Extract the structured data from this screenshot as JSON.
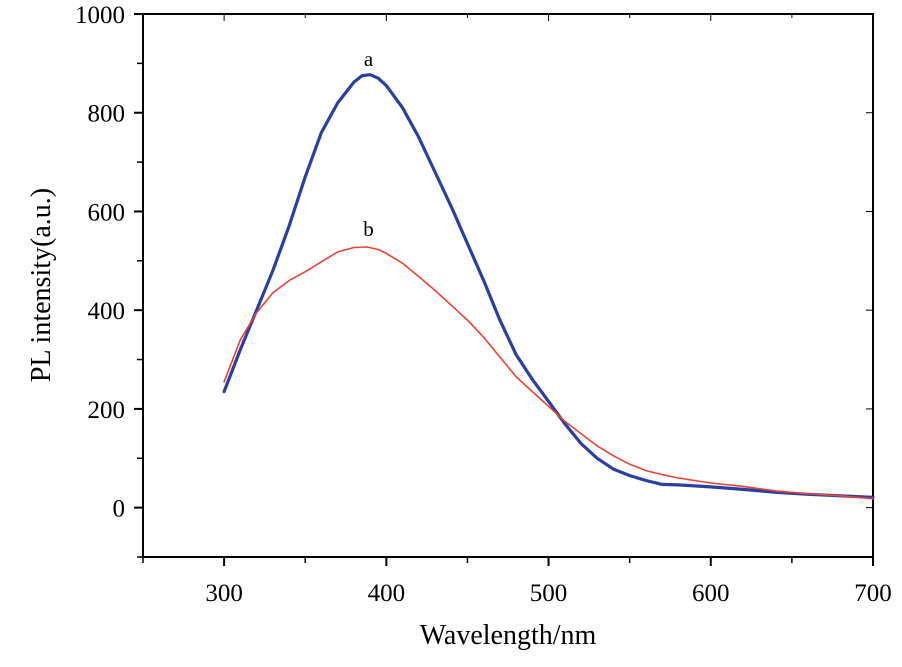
{
  "chart_data": {
    "type": "line",
    "title": "",
    "xlabel": "Wavelength/nm",
    "ylabel": "PL intensity(a.u.)",
    "xlim": [
      250,
      700
    ],
    "ylim": [
      -100,
      1000
    ],
    "x_ticks": [
      300,
      400,
      500,
      600,
      700
    ],
    "y_ticks": [
      0,
      200,
      400,
      600,
      800,
      1000
    ],
    "grid": false,
    "legend": "none",
    "series": [
      {
        "color": "#2a3f9f",
        "x": [
          300,
          310,
          320,
          330,
          340,
          350,
          360,
          370,
          380,
          385,
          390,
          395,
          400,
          410,
          420,
          430,
          440,
          450,
          460,
          470,
          480,
          490,
          500,
          510,
          520,
          530,
          540,
          550,
          560,
          570,
          580,
          600,
          620,
          640,
          660,
          680,
          700
        ],
        "y": [
          235,
          320,
          400,
          480,
          570,
          670,
          760,
          820,
          862,
          875,
          877,
          870,
          855,
          810,
          750,
          680,
          610,
          535,
          460,
          380,
          310,
          260,
          215,
          170,
          130,
          100,
          78,
          65,
          55,
          47,
          46,
          42,
          37,
          31,
          27,
          24,
          21
        ]
      },
      {
        "color": "#e8433a",
        "x": [
          300,
          310,
          320,
          330,
          340,
          350,
          360,
          370,
          380,
          388,
          395,
          400,
          410,
          420,
          430,
          440,
          450,
          460,
          470,
          480,
          490,
          500,
          510,
          520,
          530,
          540,
          550,
          560,
          570,
          580,
          600,
          620,
          640,
          660,
          680,
          700
        ],
        "y": [
          255,
          340,
          395,
          435,
          460,
          478,
          498,
          518,
          527,
          528,
          523,
          515,
          495,
          468,
          440,
          410,
          380,
          345,
          305,
          265,
          235,
          205,
          175,
          150,
          125,
          105,
          88,
          75,
          67,
          60,
          50,
          43,
          34,
          28,
          24,
          18
        ]
      }
    ],
    "annotations": [
      {
        "text": "a",
        "x": 389,
        "y": 895
      },
      {
        "text": "b",
        "x": 389,
        "y": 550
      }
    ]
  }
}
